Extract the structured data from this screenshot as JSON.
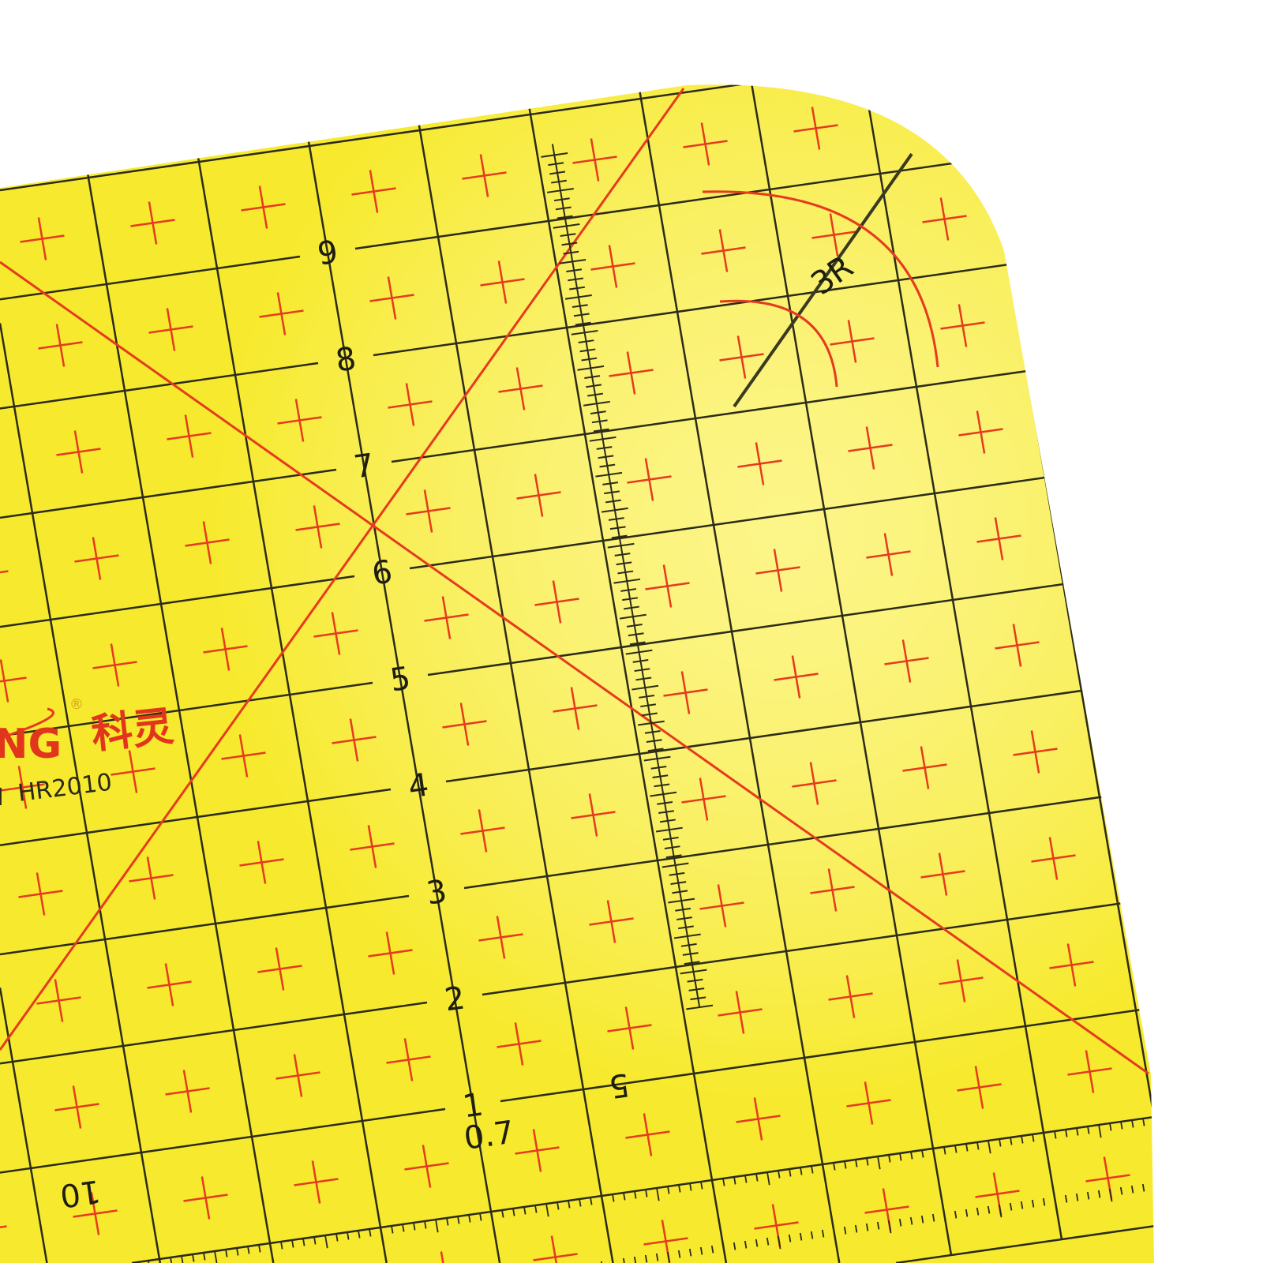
{
  "colors": {
    "ruler": "#f7ea2e",
    "grid": "#2b2b18",
    "marks": "#e53b1e",
    "background": "#ffffff"
  },
  "ruler": {
    "inch_labels": [
      "1",
      "2",
      "3",
      "4",
      "5",
      "6",
      "7",
      "8",
      "9"
    ],
    "brand": "NG",
    "brand_cn": "科灵",
    "registered": "®",
    "model": "HR2010",
    "model_prefix": "I",
    "arc_label": "3R",
    "bottom_label_5": "5",
    "bottom_label_10": "10",
    "small_label": "0.7"
  }
}
